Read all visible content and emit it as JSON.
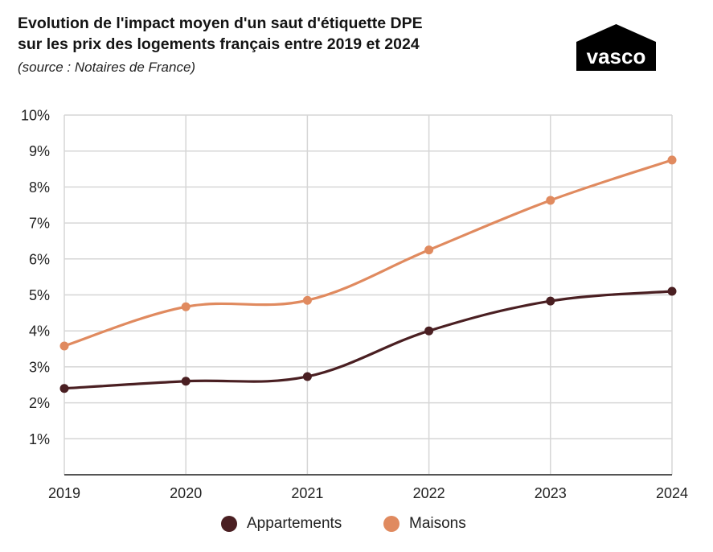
{
  "header": {
    "title_line1": "Evolution de l'impact moyen d'un saut d'étiquette DPE",
    "title_line2": "sur les prix des logements français entre 2019 et 2024",
    "subtitle": "(source : Notaires de France)"
  },
  "logo": {
    "text": "vasco",
    "icon": "house-roof-logo"
  },
  "colors": {
    "appartements": "#4a1f22",
    "maisons": "#e08a5f",
    "grid": "#d6d6d6",
    "axis": "#555555"
  },
  "chart_data": {
    "type": "line",
    "title": "Evolution de l'impact moyen d'un saut d'étiquette DPE sur les prix des logements français entre 2019 et 2024",
    "xlabel": "",
    "ylabel": "",
    "x": [
      "2019",
      "2020",
      "2021",
      "2022",
      "2023",
      "2024"
    ],
    "ylim": [
      0,
      10
    ],
    "yticks": [
      "1%",
      "2%",
      "3%",
      "4%",
      "5%",
      "6%",
      "7%",
      "8%",
      "9%",
      "10%"
    ],
    "grid": true,
    "legend_position": "bottom-center",
    "series": [
      {
        "name": "Appartements",
        "values": [
          2.4,
          2.6,
          2.73,
          4.0,
          4.83,
          5.1
        ]
      },
      {
        "name": "Maisons",
        "values": [
          3.58,
          4.67,
          4.85,
          6.25,
          7.63,
          8.75
        ]
      }
    ]
  }
}
